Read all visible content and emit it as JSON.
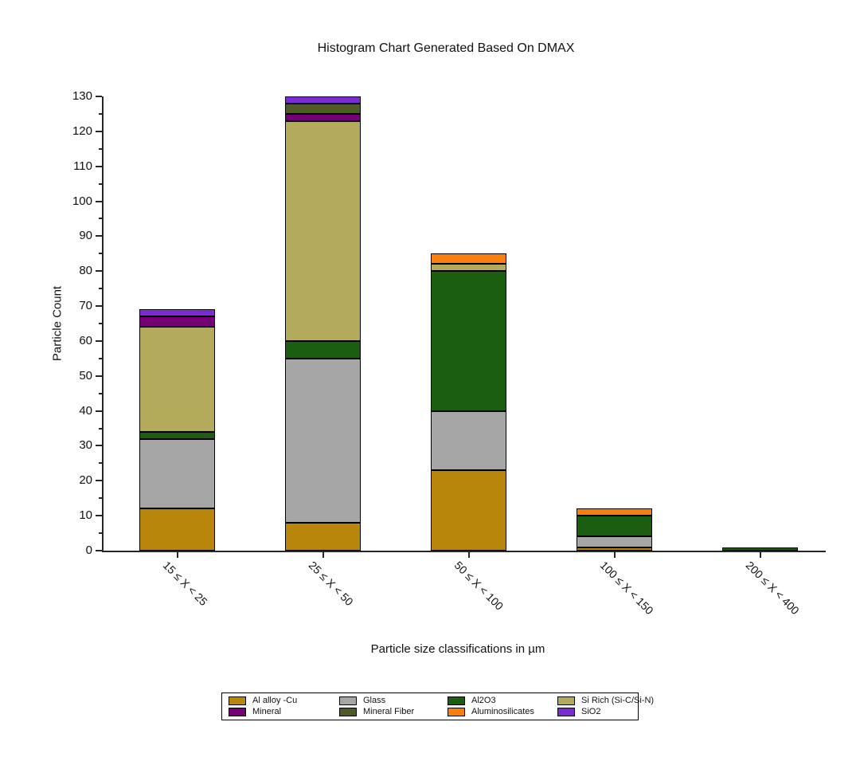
{
  "chart_data": {
    "type": "bar",
    "stacked": true,
    "title": "Histogram Chart Generated Based On DMAX",
    "xlabel": "Particle size classifications in µm",
    "ylabel": "Particle Count",
    "ylim": [
      0,
      130
    ],
    "ytick_step": 10,
    "ytick_minor_step": 5,
    "grid": "off",
    "legend_position": "bottom",
    "categories": [
      "15 ≤ X < 25",
      "25 ≤ X < 50",
      "50 ≤ X < 100",
      "100 ≤ X < 150",
      "200 ≤ X < 400"
    ],
    "series": [
      {
        "name": "Al alloy -Cu",
        "color": "#B8860B",
        "values": [
          12,
          8,
          23,
          1,
          0
        ]
      },
      {
        "name": "Glass",
        "color": "#A6A6A6",
        "values": [
          20,
          47,
          17,
          3,
          0
        ]
      },
      {
        "name": "Al2O3",
        "color": "#1B5E0F",
        "values": [
          2,
          5,
          40,
          6,
          1
        ]
      },
      {
        "name": "Si Rich (Si-C/Si-N)",
        "color": "#B3AA5C",
        "values": [
          30,
          63,
          2,
          0,
          0
        ]
      },
      {
        "name": "Mineral",
        "color": "#760076",
        "values": [
          3,
          2,
          0,
          0,
          0
        ]
      },
      {
        "name": "Mineral Fiber",
        "color": "#4D5C24",
        "values": [
          0,
          3,
          0,
          0,
          0
        ]
      },
      {
        "name": "Aluminosilicates",
        "color": "#F87E0E",
        "values": [
          0,
          0,
          3,
          2,
          0
        ]
      },
      {
        "name": "SiO2",
        "color": "#7B2BD1",
        "values": [
          2,
          2,
          0,
          0,
          0
        ]
      }
    ],
    "totals": [
      69,
      130,
      85,
      12,
      1
    ],
    "axis_color": "#262626",
    "bar_outline_color": "#000000"
  }
}
